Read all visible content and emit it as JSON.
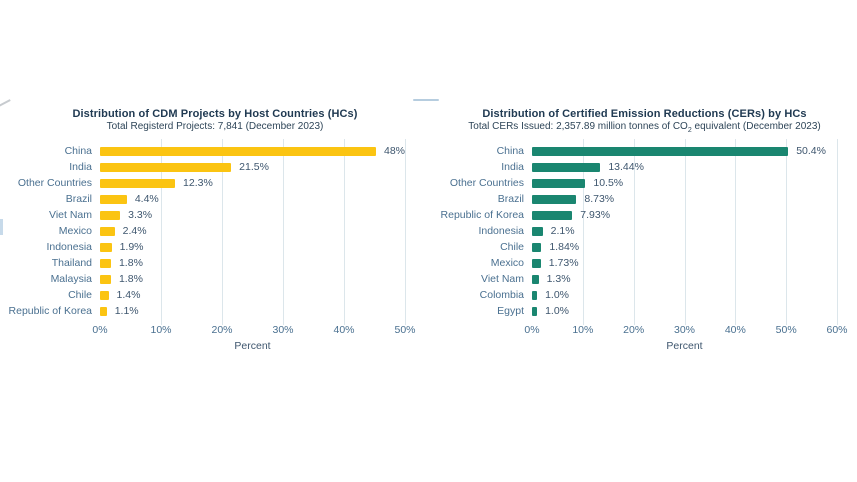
{
  "page": {
    "background": "#ffffff"
  },
  "colors": {
    "cdm_bar": "#FBC412",
    "cer_bar": "#1A8670",
    "title_text": "#203a52",
    "axis_text": "#4a7090",
    "value_text": "#3e566e",
    "gridline": "#dce6eb"
  },
  "chart_data": [
    {
      "type": "bar",
      "orientation": "horizontal",
      "title": "Distribution of CDM Projects by Host Countries (HCs)",
      "subtitle_pre": "Total Registerd Projects: 7,841 (December 2023)",
      "subtitle_sub": "",
      "subtitle_post": "",
      "categories": [
        "China",
        "India",
        "Other Countries",
        "Brazil",
        "Viet Nam",
        "Mexico",
        "Indonesia",
        "Thailand",
        "Malaysia",
        "Chile",
        "Republic of Korea"
      ],
      "values": [
        48,
        21.5,
        12.3,
        4.4,
        3.3,
        2.4,
        1.9,
        1.8,
        1.8,
        1.4,
        1.1
      ],
      "labels": [
        "48%",
        "21.5%",
        "12.3%",
        "4.4%",
        "3.3%",
        "2.4%",
        "1.9%",
        "1.8%",
        "1.8%",
        "1.4%",
        "1.1%"
      ],
      "xlabel": "Percent",
      "xlim": [
        0,
        50
      ],
      "xticks": [
        "0%",
        "10%",
        "20%",
        "30%",
        "40%",
        "50%"
      ],
      "bar_color": "#FBC412",
      "grid": true,
      "legend": "none"
    },
    {
      "type": "bar",
      "orientation": "horizontal",
      "title": "Distribution of Certified Emission Reductions (CERs) by HCs",
      "subtitle_pre": "Total CERs Issued: 2,357.89 million tonnes of CO",
      "subtitle_sub": "2",
      "subtitle_post": " equivalent (December 2023)",
      "categories": [
        "China",
        "India",
        "Other Countries",
        "Brazil",
        "Republic of Korea",
        "Indonesia",
        "Chile",
        "Mexico",
        "Viet Nam",
        "Colombia",
        "Egypt"
      ],
      "values": [
        50.4,
        13.44,
        10.5,
        8.73,
        7.93,
        2.1,
        1.84,
        1.73,
        1.3,
        1.0,
        1.0
      ],
      "labels": [
        "50.4%",
        "13.44%",
        "10.5%",
        "8.73%",
        "7.93%",
        "2.1%",
        "1.84%",
        "1.73%",
        "1.3%",
        "1.0%",
        "1.0%"
      ],
      "xlabel": "Percent",
      "xlim": [
        0,
        60
      ],
      "xticks": [
        "0%",
        "10%",
        "20%",
        "30%",
        "40%",
        "50%",
        "60%"
      ],
      "bar_color": "#1A8670",
      "grid": true,
      "legend": "none"
    }
  ]
}
